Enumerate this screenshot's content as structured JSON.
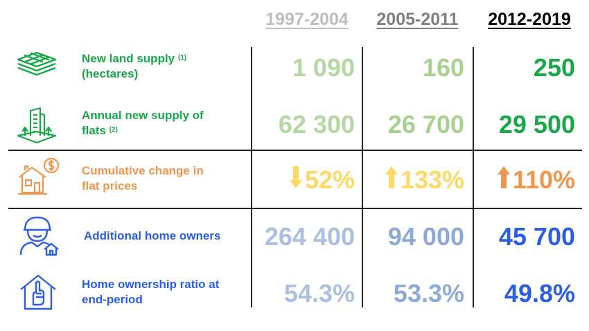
{
  "headers": [
    "1997-2004",
    "2005-2011",
    "2012-2019"
  ],
  "rows": [
    {
      "label": "New land supply",
      "label2": "(hectares)",
      "note": "(1)",
      "values": [
        "1 090",
        "160",
        "250"
      ]
    },
    {
      "label": "Annual new supply of",
      "label2": "flats",
      "note": "(2)",
      "values": [
        "62 300",
        "26 700",
        "29 500"
      ]
    },
    {
      "label": "Cumulative change in",
      "label2": "flat prices",
      "values": [
        "52%",
        "133%",
        "110%"
      ]
    },
    {
      "label": "Additional home owners",
      "values": [
        "264 400",
        "94 000",
        "45 700"
      ]
    },
    {
      "label": "Home ownership ratio at",
      "label2": "end-period",
      "values": [
        "54.3%",
        "53.3%",
        "49.8%"
      ]
    }
  ],
  "arrows": [
    "down",
    "up",
    "up"
  ],
  "colors": {
    "header1": "#bdbdbd",
    "header2": "#7f7f7f",
    "header3": "#000000",
    "green_light": "#b5d8a3",
    "green_mid": "#a9d18e",
    "green_dark": "#18a84a",
    "orange_light": "#ffd966",
    "orange_mid": "#ffd966",
    "orange_dark": "#f0954a",
    "blue_light": "#adbfe0",
    "blue_mid": "#8ea9d8",
    "blue_dark": "#2b5ee8",
    "label_green": "#18a84a",
    "label_orange": "#f0954a",
    "label_blue": "#2b5ee8"
  },
  "icons": [
    "land-layers-icon",
    "building-icon",
    "house-dollar-icon",
    "home-owner-icon",
    "home-hand-icon"
  ]
}
